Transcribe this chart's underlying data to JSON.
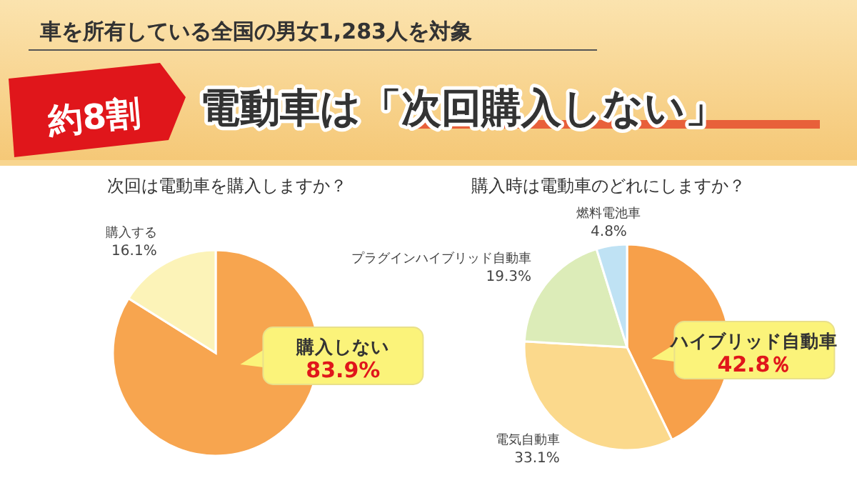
{
  "chart_data": [
    {
      "type": "other",
      "title": "電動車は「次回購入しない」",
      "subtitle": "車を所有している全国の男女1,283人を対象",
      "annotations": [
        "約8割"
      ]
    },
    {
      "type": "pie",
      "title": "次回は電動車を購入しますか？",
      "categories": [
        "購入しない",
        "購入する"
      ],
      "values": [
        83.9,
        16.1
      ],
      "colors": [
        "#f7a54f",
        "#fcf3b8"
      ],
      "value_labels": [
        "83.9%",
        "16.1%"
      ]
    },
    {
      "type": "pie",
      "title": "購入時は電動車のどれにしますか？",
      "categories": [
        "ハイブリッド自動車",
        "電気自動車",
        "プラグインハイブリッド自動車",
        "燃料電池車"
      ],
      "values": [
        42.8,
        33.1,
        19.3,
        4.8
      ],
      "colors": [
        "#f7a04a",
        "#fbd98c",
        "#dcecb8",
        "#bfe2f4"
      ],
      "value_labels": [
        "42.8％",
        "33.1%",
        "19.3%",
        "4.8%"
      ]
    }
  ]
}
